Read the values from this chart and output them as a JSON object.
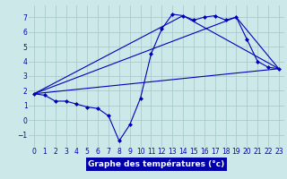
{
  "title": "Graphe des températures (°c)",
  "background_color": "#cce8e8",
  "grid_color": "#aacccc",
  "line_color": "#0000bb",
  "xlim": [
    -0.5,
    23.5
  ],
  "ylim": [
    -1.8,
    7.8
  ],
  "xticks": [
    0,
    1,
    2,
    3,
    4,
    5,
    6,
    7,
    8,
    9,
    10,
    11,
    12,
    13,
    14,
    15,
    16,
    17,
    18,
    19,
    20,
    21,
    22,
    23
  ],
  "yticks": [
    -1,
    0,
    1,
    2,
    3,
    4,
    5,
    6,
    7
  ],
  "series1_x": [
    0,
    1,
    2,
    3,
    4,
    5,
    6,
    7,
    8,
    9,
    10,
    11,
    12,
    13,
    14,
    15,
    16,
    17,
    18,
    19,
    20,
    21,
    22,
    23
  ],
  "series1_y": [
    1.8,
    1.7,
    1.3,
    1.3,
    1.1,
    0.9,
    0.8,
    0.3,
    -1.4,
    -0.3,
    1.5,
    4.5,
    6.2,
    7.2,
    7.1,
    6.8,
    7.0,
    7.1,
    6.8,
    7.0,
    5.5,
    4.0,
    3.6,
    3.5
  ],
  "series2_x": [
    0,
    23
  ],
  "series2_y": [
    1.8,
    3.5
  ],
  "series3_x": [
    0,
    14,
    23
  ],
  "series3_y": [
    1.8,
    7.1,
    3.5
  ],
  "series4_x": [
    0,
    19,
    23
  ],
  "series4_y": [
    1.8,
    7.0,
    3.5
  ],
  "xlabel_fontsize": 6.5,
  "tick_fontsize": 5.5,
  "xlabel_color": "#0000bb",
  "bottom_bar_color": "#0000aa"
}
